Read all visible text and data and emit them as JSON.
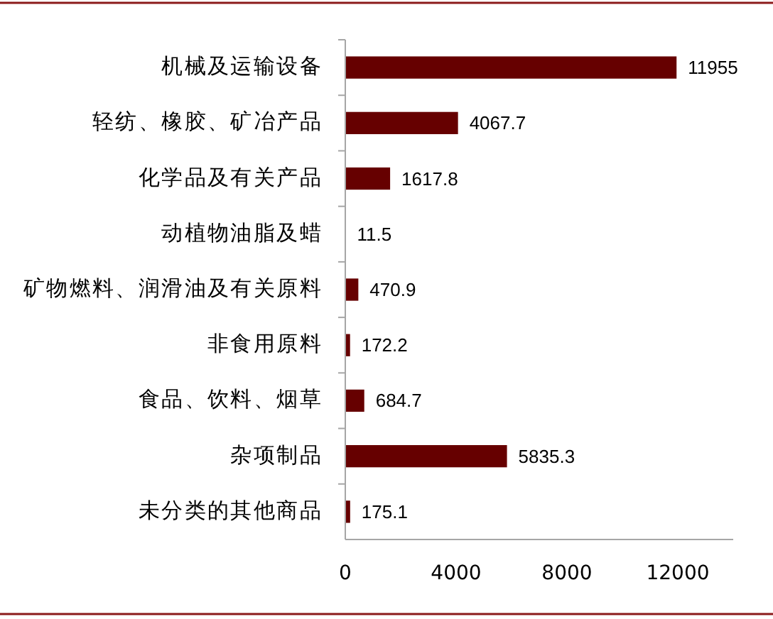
{
  "chart_data": {
    "type": "bar",
    "orientation": "horizontal",
    "categories": [
      "机械及运输设备",
      "轻纺、橡胶、矿冶产品",
      "化学品及有关产品",
      "动植物油脂及蜡",
      "矿物燃料、润滑油及有关原料",
      "非食用原料",
      "食品、饮料、烟草",
      "杂项制品",
      "未分类的其他商品"
    ],
    "values": [
      11955,
      4067.7,
      1617.8,
      11.5,
      470.9,
      172.2,
      684.7,
      5835.3,
      175.1
    ],
    "color": "#660000",
    "xlim": [
      0,
      14000
    ],
    "xticks": [
      0,
      4000,
      8000,
      12000
    ],
    "data_labels": true,
    "grid": false
  }
}
